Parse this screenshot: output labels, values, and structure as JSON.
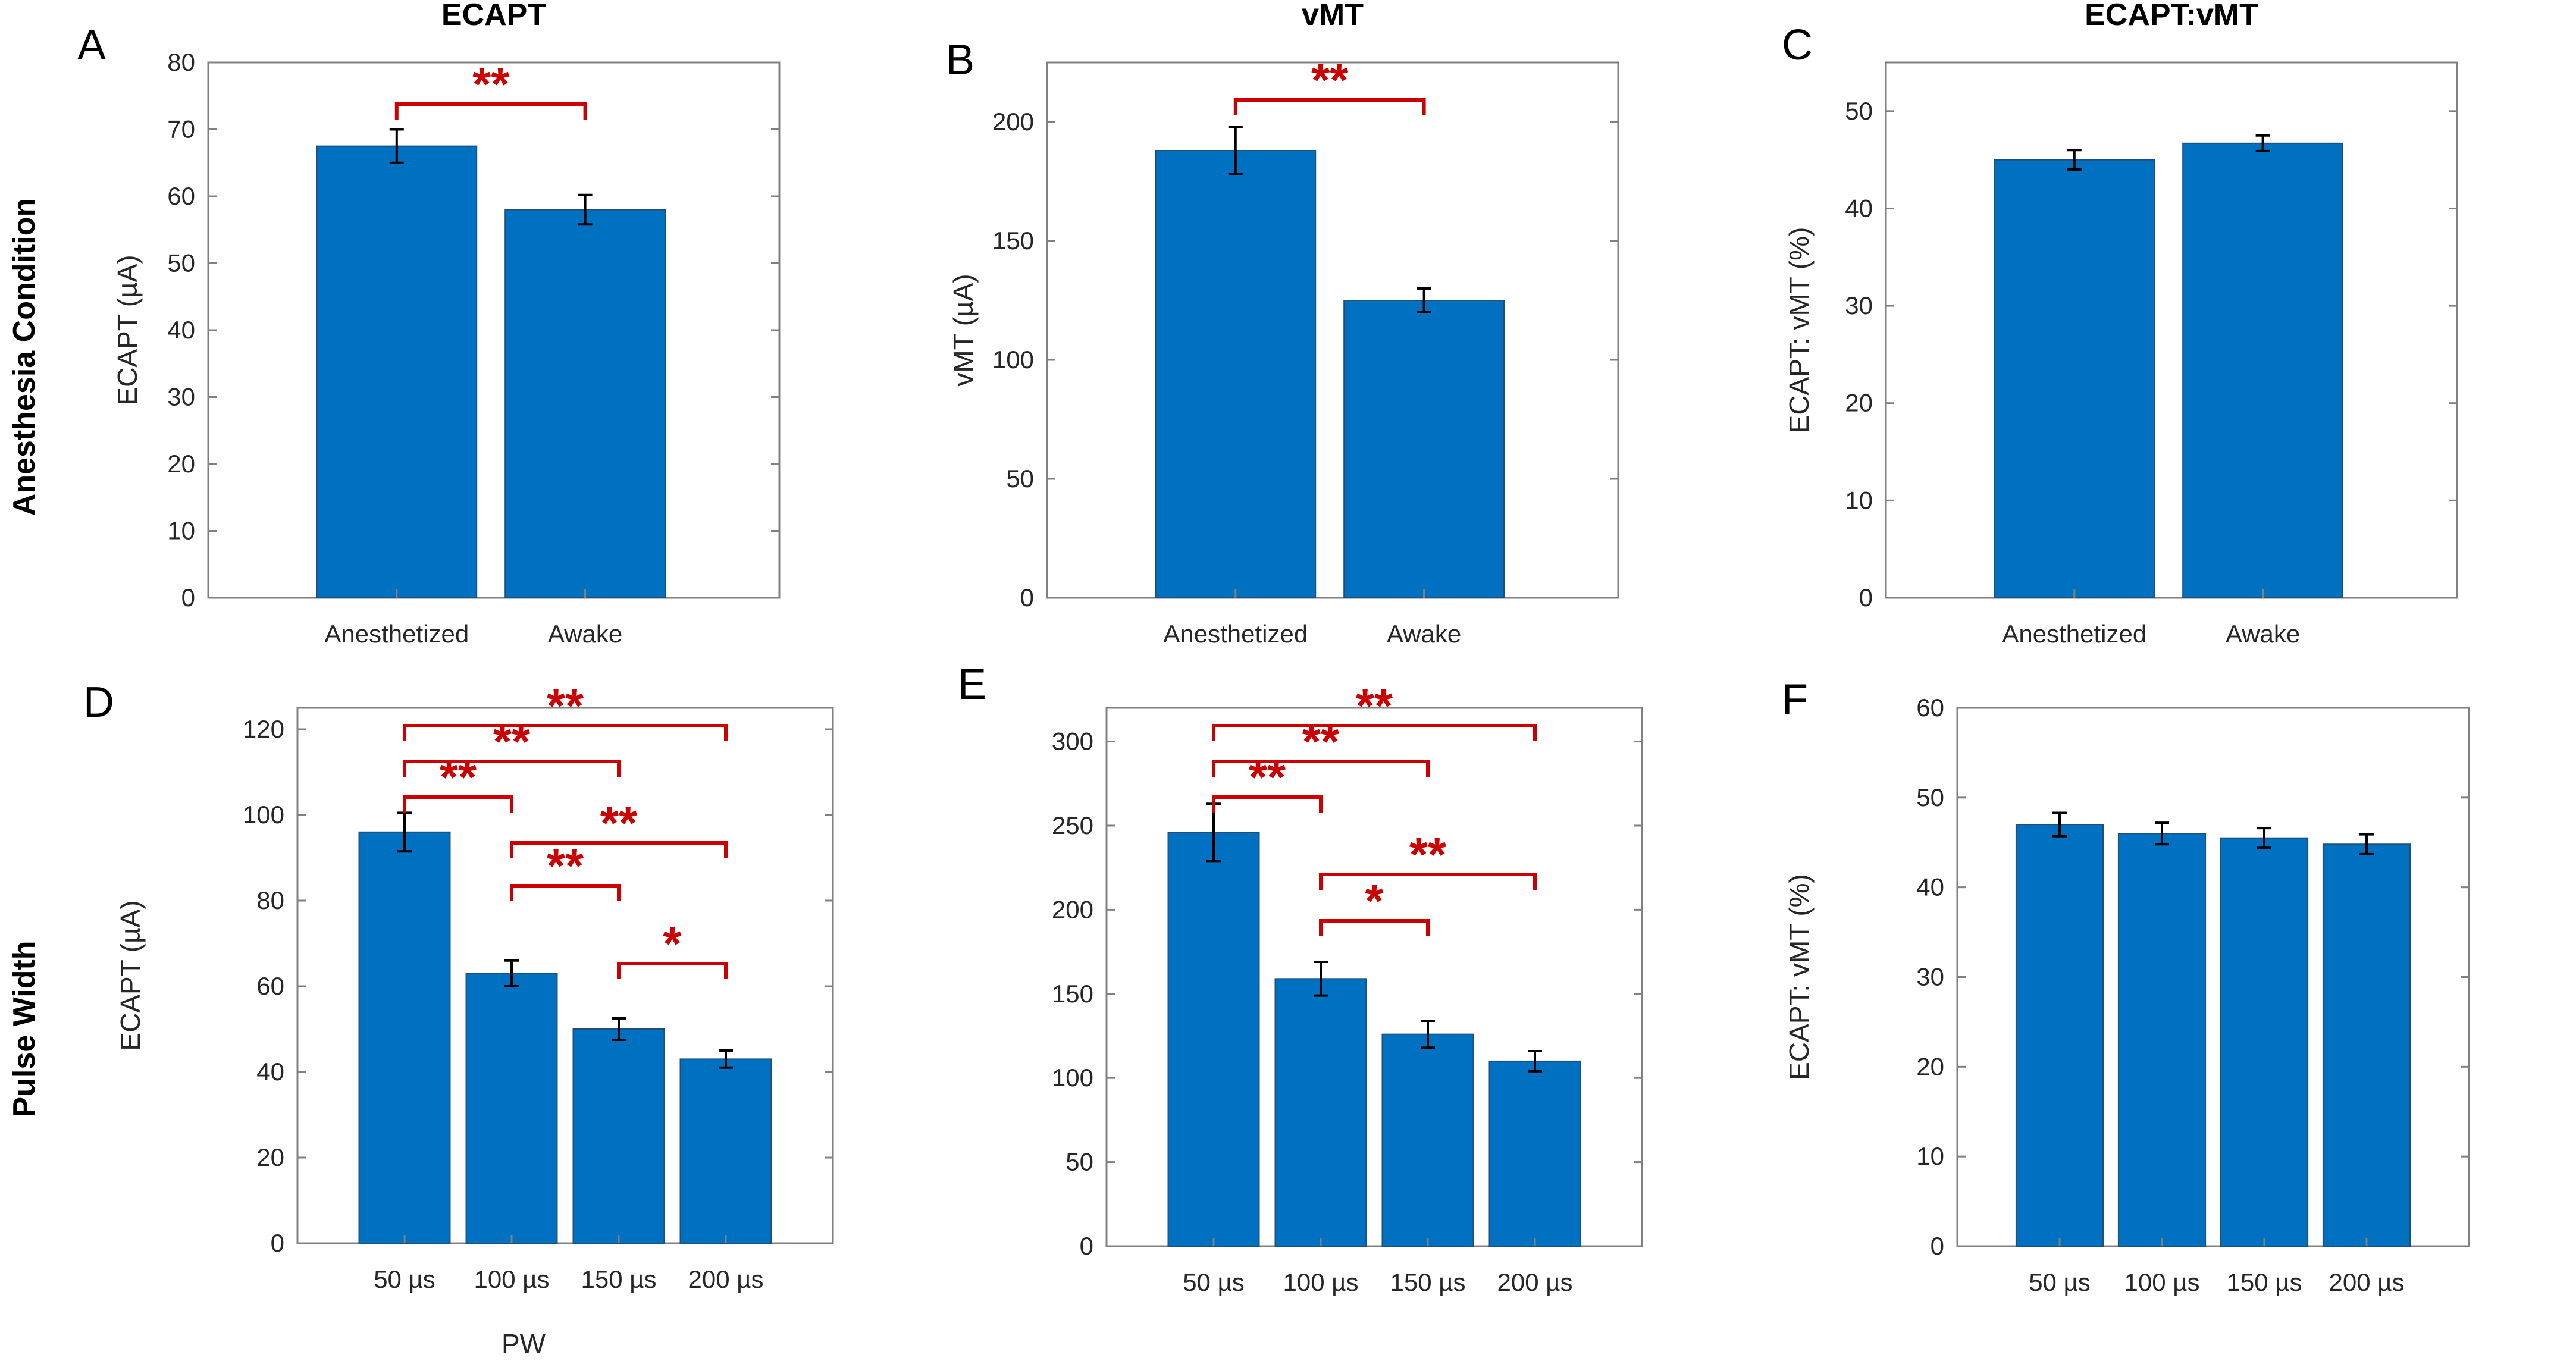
{
  "row_titles": {
    "row1": "Anesthesia Condition",
    "row2": "Pulse Width"
  },
  "colors": {
    "bar": "#0070c0",
    "bar_edge": "#1f4e79",
    "sig": "#cc0000",
    "axis": "#808080"
  },
  "chart_data": [
    {
      "panel": "A",
      "type": "bar",
      "title": "ECAPT",
      "categories": [
        "Anesthetized",
        "Awake"
      ],
      "values": [
        67.5,
        58
      ],
      "errors": [
        2.5,
        2.2
      ],
      "ylabel": "ECAPT (µA)",
      "xlabel": "",
      "ylim": [
        0,
        80
      ],
      "yticks": [
        0,
        10,
        20,
        30,
        40,
        50,
        60,
        70,
        80
      ],
      "sig": [
        {
          "from": 0,
          "to": 1,
          "level": 1.0,
          "label": "**"
        }
      ]
    },
    {
      "panel": "B",
      "type": "bar",
      "title": "vMT",
      "categories": [
        "Anesthetized",
        "Awake"
      ],
      "values": [
        188,
        125
      ],
      "errors": [
        10,
        5
      ],
      "ylabel": "vMT (µA)",
      "xlabel": "",
      "ylim": [
        0,
        225
      ],
      "yticks": [
        0,
        50,
        100,
        150,
        200
      ],
      "sig": [
        {
          "from": 0,
          "to": 1,
          "level": 0.0,
          "label": "**"
        }
      ]
    },
    {
      "panel": "C",
      "type": "bar",
      "title": "ECAPT:vMT",
      "categories": [
        "Anesthetized",
        "Awake"
      ],
      "values": [
        45,
        46.7
      ],
      "errors": [
        1,
        0.8
      ],
      "ylabel": "ECAPT: vMT (%)",
      "xlabel": "",
      "ylim": [
        0,
        55
      ],
      "yticks": [
        0,
        10,
        20,
        30,
        40,
        50
      ],
      "sig": []
    },
    {
      "panel": "D",
      "type": "bar",
      "title": "",
      "categories": [
        "50 µs",
        "100 µs",
        "150 µs",
        "200 µs"
      ],
      "values": [
        96,
        63,
        50,
        43
      ],
      "errors": [
        4.5,
        3,
        2.5,
        2
      ],
      "ylabel": "ECAPT (µA)",
      "xlabel": "PW",
      "ylim": [
        0,
        125
      ],
      "yticks": [
        0,
        20,
        40,
        60,
        80,
        100,
        120
      ],
      "sig": [
        {
          "from": 0,
          "to": 3,
          "level": 3.0,
          "label": "**"
        },
        {
          "from": 0,
          "to": 2,
          "level": 2.0,
          "label": "**"
        },
        {
          "from": 0,
          "to": 1,
          "level": 1.0,
          "label": "**"
        },
        {
          "from": 1,
          "to": 3,
          "level": 1.0,
          "label": "**"
        },
        {
          "from": 1,
          "to": 2,
          "level": 0.0,
          "label": "**"
        },
        {
          "from": 2,
          "to": 3,
          "level": 0.0,
          "label": "*"
        }
      ]
    },
    {
      "panel": "E",
      "type": "bar",
      "title": "",
      "categories": [
        "50 µs",
        "100 µs",
        "150 µs",
        "200 µs"
      ],
      "values": [
        246,
        159,
        126,
        110
      ],
      "errors": [
        17,
        10,
        8,
        6
      ],
      "ylabel": "",
      "xlabel": "",
      "ylim": [
        0,
        320
      ],
      "yticks": [
        0,
        50,
        100,
        150,
        200,
        250,
        300
      ],
      "sig": [
        {
          "from": 0,
          "to": 3,
          "level": 3.0,
          "label": "**"
        },
        {
          "from": 0,
          "to": 2,
          "level": 2.0,
          "label": "**"
        },
        {
          "from": 0,
          "to": 1,
          "level": 1.0,
          "label": "**"
        },
        {
          "from": 1,
          "to": 3,
          "level": 1.0,
          "label": "**"
        },
        {
          "from": 1,
          "to": 2,
          "level": 0.0,
          "label": "*"
        }
      ]
    },
    {
      "panel": "F",
      "type": "bar",
      "title": "",
      "categories": [
        "50 µs",
        "100 µs",
        "150 µs",
        "200 µs"
      ],
      "values": [
        47,
        46,
        45.5,
        44.8
      ],
      "errors": [
        1.3,
        1.2,
        1.1,
        1.1
      ],
      "ylabel": "ECAPT: vMT (%)",
      "xlabel": "",
      "ylim": [
        0,
        60
      ],
      "yticks": [
        0,
        10,
        20,
        30,
        40,
        50,
        60
      ],
      "sig": []
    }
  ]
}
